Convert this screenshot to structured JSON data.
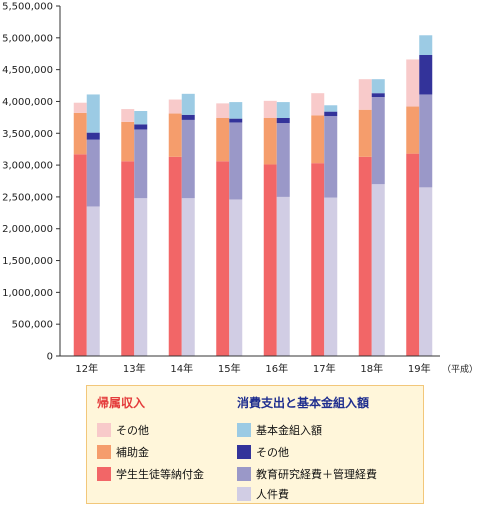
{
  "chart_data": {
    "type": "bar",
    "stacked": true,
    "grouped": true,
    "categories": [
      "12年",
      "13年",
      "14年",
      "15年",
      "16年",
      "17年",
      "18年",
      "19年"
    ],
    "category_suffix": "（平成）",
    "ylim": [
      0,
      5500000
    ],
    "yticks": [
      "0",
      "500,000",
      "1,000,000",
      "1,500,000",
      "2,000,000",
      "2,500,000",
      "3,000,000",
      "3,500,000",
      "4,000,000",
      "4,500,000",
      "5,000,000",
      "5,500,000"
    ],
    "groups": [
      {
        "title": "帰属収入",
        "series": [
          {
            "name": "学生生徒等納付金",
            "color": "#f26667",
            "values": [
              3170000,
              3060000,
              3130000,
              3060000,
              3010000,
              3030000,
              3130000,
              3180000
            ]
          },
          {
            "name": "補助金",
            "color": "#f59d6c",
            "values": [
              650000,
              620000,
              680000,
              680000,
              730000,
              750000,
              740000,
              740000
            ]
          },
          {
            "name": "その他",
            "color": "#f8caca",
            "values": [
              160000,
              200000,
              220000,
              230000,
              270000,
              350000,
              480000,
              740000
            ]
          }
        ]
      },
      {
        "title": "消費支出と基本金組入額",
        "series": [
          {
            "name": "人件費",
            "color": "#d1cde4",
            "values": [
              2350000,
              2480000,
              2480000,
              2460000,
              2500000,
              2490000,
              2700000,
              2650000
            ]
          },
          {
            "name": "教育研究経費＋管理経費",
            "color": "#9a98c8",
            "values": [
              1050000,
              1080000,
              1230000,
              1210000,
              1160000,
              1280000,
              1370000,
              1460000
            ]
          },
          {
            "name": "その他",
            "color": "#33339a",
            "values": [
              110000,
              80000,
              80000,
              60000,
              80000,
              70000,
              60000,
              620000
            ]
          },
          {
            "name": "基本金組入額",
            "color": "#9ccbe4",
            "values": [
              600000,
              210000,
              330000,
              260000,
              250000,
              100000,
              220000,
              310000
            ]
          }
        ]
      }
    ]
  },
  "legend": {
    "left_title": "帰属収入",
    "left_title_color": "#e43b3b",
    "right_title": "消費支出と基本金組入額",
    "right_title_color": "#1f2e8f",
    "left_items": [
      {
        "label": "その他",
        "color": "#f8caca"
      },
      {
        "label": "補助金",
        "color": "#f59d6c"
      },
      {
        "label": "学生生徒等納付金",
        "color": "#f26667"
      }
    ],
    "right_items": [
      {
        "label": "基本金組入額",
        "color": "#9ccbe4"
      },
      {
        "label": "その他",
        "color": "#33339a"
      },
      {
        "label": "教育研究経費＋管理経費",
        "color": "#9a98c8"
      },
      {
        "label": "人件費",
        "color": "#d1cde4"
      }
    ]
  }
}
